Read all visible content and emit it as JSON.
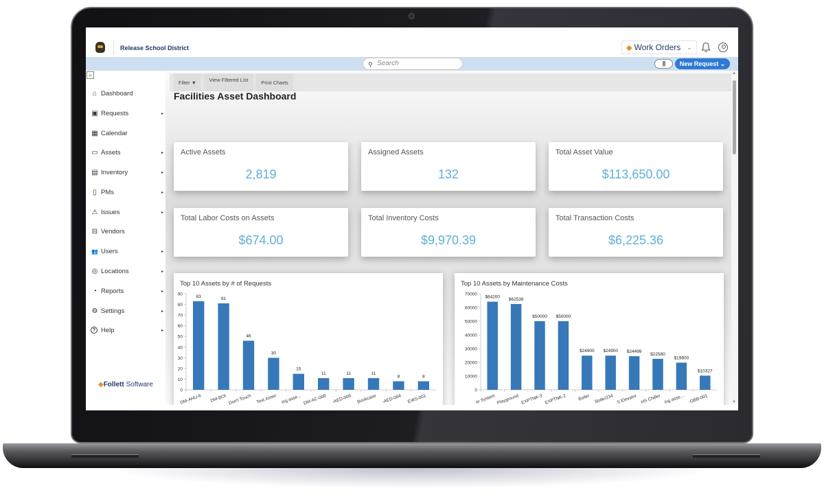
{
  "header": {
    "district_name": "Release School District",
    "app_switcher_label": "Work Orders",
    "app_switcher_icon": "◆",
    "chevron": "⌄"
  },
  "searchbar": {
    "placeholder": "Search",
    "barcode_label": "||||",
    "new_request_label": "New Request ⌄"
  },
  "sidebar": {
    "collapse_label": "«",
    "items": [
      {
        "label": "Dashboard",
        "icon": "⌂",
        "has_submenu": false
      },
      {
        "label": "Requests",
        "icon": "▣",
        "has_submenu": true
      },
      {
        "label": "Calendar",
        "icon": "▦",
        "has_submenu": false
      },
      {
        "label": "Assets",
        "icon": "▭",
        "has_submenu": true
      },
      {
        "label": "Inventory",
        "icon": "▤",
        "has_submenu": true
      },
      {
        "label": "PMs",
        "icon": "▯",
        "has_submenu": true
      },
      {
        "label": "Issues",
        "icon": "⚠",
        "has_submenu": true
      },
      {
        "label": "Vendors",
        "icon": "⊟",
        "has_submenu": false
      },
      {
        "label": "Users",
        "icon": "👥",
        "has_submenu": true
      },
      {
        "label": "Locations",
        "icon": "◎",
        "has_submenu": true
      },
      {
        "label": "Reports",
        "icon": "◔",
        "has_submenu": true
      },
      {
        "label": "Settings",
        "icon": "⚙",
        "has_submenu": true
      },
      {
        "label": "Help",
        "icon": "?",
        "has_submenu": true
      }
    ],
    "submenu_arrow": "▸",
    "footer_brand_bold": "Follett",
    "footer_brand_light": " Software",
    "footer_icon": "◆"
  },
  "toolbar": {
    "filter_label": "Filter ▼",
    "view_filtered_label": "View Filtered List",
    "print_charts_label": "Print Charts"
  },
  "page_title": "Facilities Asset Dashboard",
  "stats": [
    {
      "label": "Active Assets",
      "value": "2,819"
    },
    {
      "label": "Assigned Assets",
      "value": "132"
    },
    {
      "label": "Total Asset Value",
      "value": "$113,650.00"
    },
    {
      "label": "Total Labor Costs on Assets",
      "value": "$674.00"
    },
    {
      "label": "Total Inventory Costs",
      "value": "$9,970.39"
    },
    {
      "label": "Total Transaction Costs",
      "value": "$6,225.36"
    }
  ],
  "colors": {
    "accent_blue": "#2f7ad3",
    "stat_value": "#5fb0d8",
    "bar": "#3779b8",
    "brand_orange": "#f08a24",
    "header_band": "#cfdff2"
  },
  "chart_data": [
    {
      "type": "bar",
      "title": "Top 10 Assets by # of Requests",
      "categories": [
        "DM-AHU-6",
        "DM-BOI",
        "Don't Touch",
        "Test Asset",
        "...ing asse...",
        "DM-AC-008",
        "...-AED-006",
        "...Bookcase",
        "...-AED-004",
        "...EWS-001"
      ],
      "values": [
        83,
        81,
        46,
        30,
        15,
        11,
        11,
        11,
        8,
        8
      ],
      "value_labels": [
        "83",
        "81",
        "46",
        "30",
        "15",
        "11",
        "11",
        "11",
        "8",
        "8"
      ],
      "yticks": [
        0,
        10,
        20,
        30,
        40,
        50,
        60,
        70,
        80,
        90
      ],
      "ylim": [
        0,
        90
      ],
      "xlabel": "",
      "ylabel": "",
      "grid": false,
      "legend": "none"
    },
    {
      "type": "bar",
      "title": "Top 10 Assets by Maintenance Costs",
      "categories": [
        "...er System",
        "...Playground",
        "...EXPTNK-3",
        "...EXPTNK-2",
        "Boiler",
        "Boiler234",
        "...S Elevator",
        "HS Chiller",
        "...ing asse...",
        "...-GBB-001"
      ],
      "values": [
        64200,
        62539,
        50000,
        50000,
        24900,
        24900,
        24499,
        22580,
        19800,
        10327
      ],
      "value_labels": [
        "$64200",
        "$62539",
        "$50000",
        "$50000",
        "$24900",
        "$24900",
        "$24499",
        "$22580",
        "$19800",
        "$10327"
      ],
      "yticks": [
        0,
        10000,
        20000,
        30000,
        40000,
        50000,
        60000,
        70000
      ],
      "ylim": [
        0,
        70000
      ],
      "xlabel": "",
      "ylabel": "",
      "grid": false,
      "legend": "none"
    }
  ]
}
